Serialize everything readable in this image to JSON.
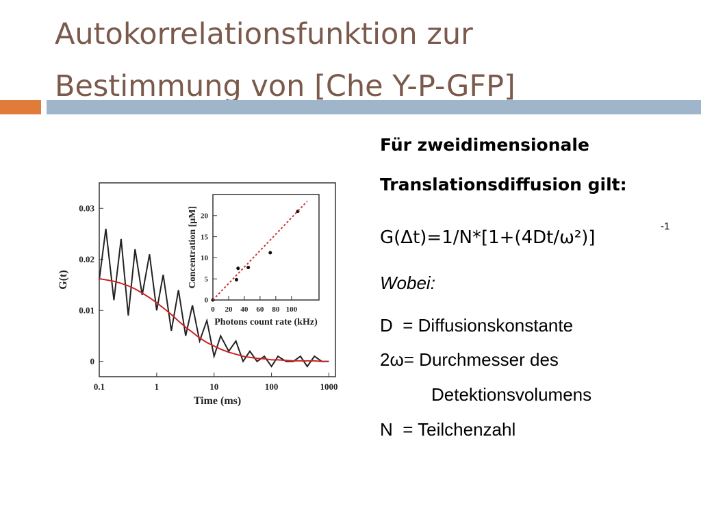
{
  "title": [
    "Autokorrelationsfunktion zur",
    "Bestimmung von [Che Y-P-GFP]"
  ],
  "text": {
    "heading": [
      "Für zweidimensionale",
      "Translationsdiffusion gilt:"
    ],
    "formula": "G(Δt)=1/N*[1+(4Dt/ω²)]",
    "formula_exponent": "-1",
    "wobei": "Wobei:",
    "definitions": [
      "D  = Diffusionskonstante",
      "2ω= Durchmesser des",
      "Detektionsvolumens",
      "N  = Teilchenzahl"
    ]
  },
  "chart_data": [
    {
      "type": "line",
      "xlabel": "Time (ms)",
      "ylabel": "G(t)",
      "xscale": "log",
      "xlim": [
        0.1,
        1300
      ],
      "ylim": [
        -0.003,
        0.035
      ],
      "xticks": [
        0.1,
        1,
        10,
        100,
        1000
      ],
      "yticks": [
        0,
        0.01,
        0.02,
        0.03
      ],
      "x": [
        0.1,
        0.13,
        0.18,
        0.24,
        0.32,
        0.42,
        0.56,
        0.75,
        1,
        1.3,
        1.8,
        2.4,
        3.2,
        4.2,
        5.6,
        7.5,
        10,
        13,
        18,
        24,
        32,
        42,
        56,
        75,
        100,
        130,
        180,
        240,
        320,
        420,
        560,
        750,
        1000
      ],
      "series": [
        {
          "color": "#222222",
          "values": [
            0.016,
            0.026,
            0.012,
            0.024,
            0.009,
            0.022,
            0.013,
            0.021,
            0.01,
            0.017,
            0.006,
            0.014,
            0.005,
            0.011,
            0.004,
            0.008,
            0.001,
            0.005,
            0.002,
            0.004,
            0.0,
            0.002,
            0.0,
            0.001,
            -0.001,
            0.001,
            0.0,
            0.0,
            0.001,
            -0.001,
            0.001,
            0.0,
            0.0
          ]
        },
        {
          "color": "#cc2222",
          "values": [
            0.0162,
            0.016,
            0.0157,
            0.0153,
            0.0148,
            0.0142,
            0.0134,
            0.0125,
            0.0115,
            0.0105,
            0.0092,
            0.0079,
            0.0067,
            0.0057,
            0.0046,
            0.0037,
            0.003,
            0.0024,
            0.0018,
            0.0014,
            0.001,
            0.0008,
            0.0006,
            0.0005,
            0.0003,
            0.0003,
            0.0002,
            0.0001,
            0.0001,
            0.0001,
            0.0001,
            0,
            0
          ]
        }
      ]
    },
    {
      "type": "scatter",
      "xlabel": "Photons count rate (kHz)",
      "ylabel": "Concentration [µM]",
      "xlim": [
        0,
        135
      ],
      "ylim": [
        0,
        25
      ],
      "xticks": [
        0,
        20,
        40,
        60,
        80,
        100
      ],
      "yticks": [
        0,
        5,
        10,
        15,
        20
      ],
      "series": [
        {
          "color": "#111111",
          "x": [
            0,
            30,
            32,
            45,
            73,
            108
          ],
          "values": [
            0,
            4.8,
            7.5,
            7.7,
            11.2,
            21
          ]
        },
        {
          "type": "line",
          "line_style": "dashed",
          "color": "#cc3333",
          "x": [
            0,
            120
          ],
          "values": [
            0,
            23.4
          ]
        }
      ]
    }
  ]
}
